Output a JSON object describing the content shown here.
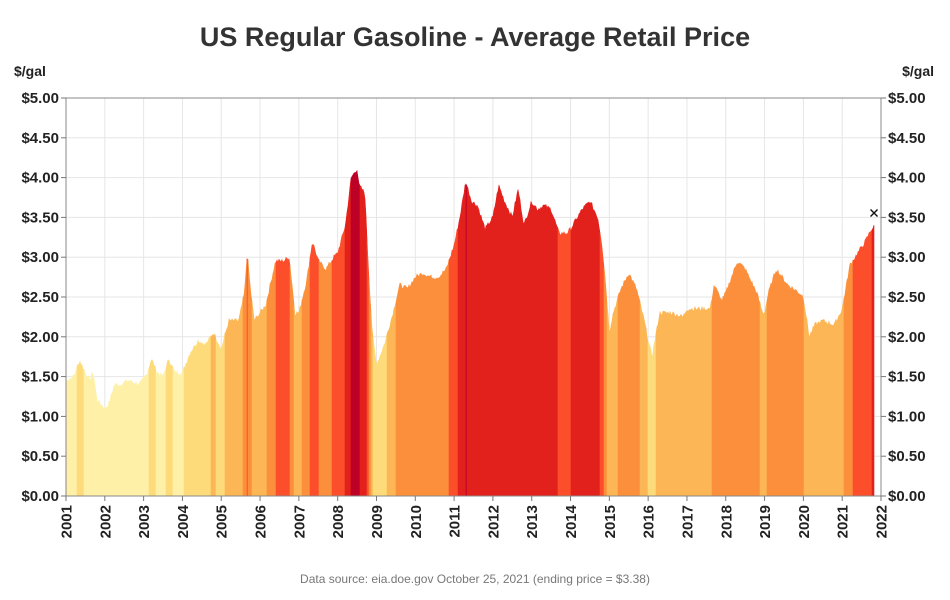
{
  "chart_data": {
    "type": "area",
    "title": "US Regular Gasoline - Average Retail Price",
    "ylabel_left": "$/gal",
    "ylabel_right": "$/gal",
    "ylim": [
      0,
      5
    ],
    "xlim": [
      2001,
      2022
    ],
    "y_ticks": [
      "$0.00",
      "$0.50",
      "$1.00",
      "$1.50",
      "$2.00",
      "$2.50",
      "$3.00",
      "$3.50",
      "$4.00",
      "$4.50",
      "$5.00"
    ],
    "x_ticks": [
      "2001",
      "2002",
      "2003",
      "2004",
      "2005",
      "2006",
      "2007",
      "2008",
      "2009",
      "2010",
      "2011",
      "2012",
      "2013",
      "2014",
      "2015",
      "2016",
      "2017",
      "2018",
      "2019",
      "2020",
      "2021",
      "2022"
    ],
    "grid": true,
    "fill_colored_by_price_level": true,
    "color_scale": [
      "#fff0a8",
      "#fedb7a",
      "#fdb655",
      "#fc8f3b",
      "#fc4e2a",
      "#e3211c",
      "#bd0026"
    ],
    "end_marker": "x",
    "x": [
      2001.0,
      2001.2,
      2001.35,
      2001.45,
      2001.6,
      2001.7,
      2001.8,
      2002.0,
      2002.1,
      2002.25,
      2002.4,
      2002.6,
      2002.9,
      2003.1,
      2003.2,
      2003.35,
      2003.5,
      2003.65,
      2003.8,
      2004.0,
      2004.2,
      2004.4,
      2004.6,
      2004.8,
      2005.0,
      2005.2,
      2005.45,
      2005.6,
      2005.67,
      2005.75,
      2005.85,
      2006.0,
      2006.15,
      2006.4,
      2006.6,
      2006.75,
      2006.9,
      2007.0,
      2007.2,
      2007.35,
      2007.5,
      2007.7,
      2007.9,
      2008.0,
      2008.2,
      2008.35,
      2008.5,
      2008.55,
      2008.7,
      2008.8,
      2008.9,
      2009.0,
      2009.2,
      2009.4,
      2009.6,
      2009.8,
      2010.0,
      2010.2,
      2010.4,
      2010.6,
      2010.8,
      2011.0,
      2011.15,
      2011.3,
      2011.45,
      2011.6,
      2011.8,
      2012.0,
      2012.15,
      2012.3,
      2012.5,
      2012.65,
      2012.8,
      2013.0,
      2013.15,
      2013.3,
      2013.5,
      2013.7,
      2013.9,
      2014.0,
      2014.3,
      2014.5,
      2014.7,
      2014.8,
      2014.9,
      2015.0,
      2015.1,
      2015.3,
      2015.5,
      2015.7,
      2015.9,
      2016.0,
      2016.1,
      2016.3,
      2016.6,
      2016.9,
      2017.0,
      2017.3,
      2017.6,
      2017.7,
      2017.9,
      2018.0,
      2018.3,
      2018.5,
      2018.8,
      2018.95,
      2019.0,
      2019.1,
      2019.3,
      2019.6,
      2019.9,
      2020.0,
      2020.15,
      2020.3,
      2020.5,
      2020.8,
      2021.0,
      2021.2,
      2021.4,
      2021.6,
      2021.75,
      2021.82
    ],
    "values": [
      1.45,
      1.5,
      1.7,
      1.6,
      1.45,
      1.55,
      1.2,
      1.1,
      1.15,
      1.4,
      1.4,
      1.45,
      1.4,
      1.55,
      1.72,
      1.55,
      1.5,
      1.72,
      1.55,
      1.55,
      1.8,
      1.95,
      1.9,
      2.05,
      1.85,
      2.2,
      2.2,
      2.55,
      3.05,
      2.6,
      2.2,
      2.3,
      2.4,
      2.95,
      2.95,
      3.0,
      2.3,
      2.3,
      2.7,
      3.2,
      2.95,
      2.85,
      3.0,
      3.05,
      3.4,
      4.0,
      4.11,
      3.9,
      3.8,
      2.8,
      2.0,
      1.65,
      1.9,
      2.25,
      2.65,
      2.6,
      2.75,
      2.8,
      2.75,
      2.75,
      2.85,
      3.15,
      3.5,
      3.95,
      3.7,
      3.65,
      3.35,
      3.5,
      3.9,
      3.7,
      3.5,
      3.85,
      3.4,
      3.7,
      3.6,
      3.65,
      3.6,
      3.3,
      3.3,
      3.35,
      3.6,
      3.7,
      3.5,
      3.2,
      2.7,
      2.05,
      2.3,
      2.6,
      2.8,
      2.6,
      2.2,
      1.95,
      1.75,
      2.3,
      2.3,
      2.25,
      2.35,
      2.35,
      2.35,
      2.65,
      2.45,
      2.55,
      2.95,
      2.85,
      2.55,
      2.3,
      2.3,
      2.55,
      2.85,
      2.65,
      2.55,
      2.5,
      2.0,
      2.15,
      2.2,
      2.15,
      2.35,
      2.9,
      3.05,
      3.2,
      3.35,
      3.38
    ]
  },
  "axis": {
    "unit_left": "$/gal",
    "unit_right": "$/gal"
  },
  "footer": {
    "text": "Data source: eia.doe.gov   October 25, 2021 (ending price = $3.38)"
  }
}
